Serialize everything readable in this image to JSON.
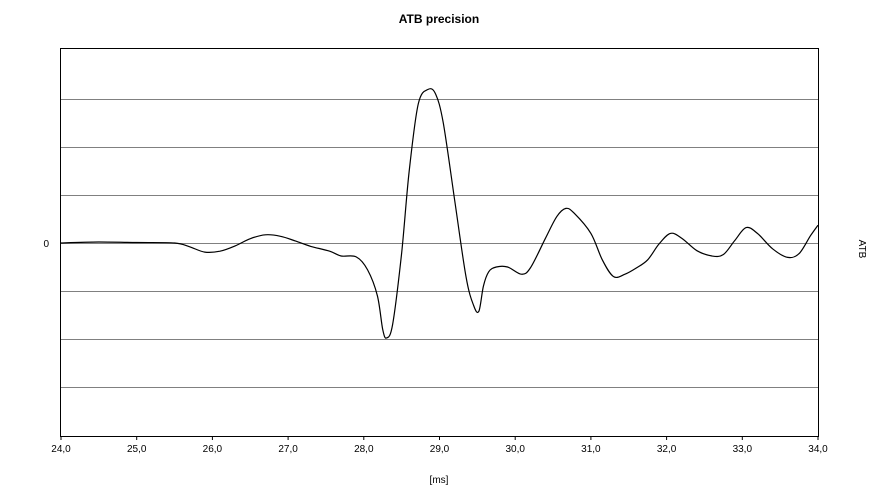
{
  "chart_data": {
    "type": "line",
    "title": "ATB precision",
    "xlabel": "[ms]",
    "ylabel_right": "ATB",
    "xlim": [
      24.0,
      34.0
    ],
    "ylim": [
      -4,
      4
    ],
    "x_ticks": [
      "24,0",
      "25,0",
      "26,0",
      "27,0",
      "28,0",
      "29,0",
      "30,0",
      "31,0",
      "32,0",
      "33,0",
      "34,0"
    ],
    "y_tick_labels": [
      {
        "value": 0,
        "label": "0"
      }
    ],
    "grid": {
      "horizontal": true,
      "vertical": false,
      "y_lines": [
        -3,
        -2,
        -1,
        0,
        1,
        2,
        3
      ]
    },
    "series": [
      {
        "name": "",
        "color": "#000000",
        "points": [
          [
            24.0,
            0.0
          ],
          [
            24.5,
            0.02
          ],
          [
            25.0,
            0.01
          ],
          [
            25.5,
            0.0
          ],
          [
            25.7,
            -0.08
          ],
          [
            25.9,
            -0.19
          ],
          [
            26.1,
            -0.17
          ],
          [
            26.3,
            -0.06
          ],
          [
            26.5,
            0.09
          ],
          [
            26.7,
            0.17
          ],
          [
            26.9,
            0.14
          ],
          [
            27.1,
            0.04
          ],
          [
            27.3,
            -0.07
          ],
          [
            27.55,
            -0.17
          ],
          [
            27.7,
            -0.27
          ],
          [
            27.9,
            -0.29
          ],
          [
            28.05,
            -0.56
          ],
          [
            28.18,
            -1.1
          ],
          [
            28.25,
            -1.8
          ],
          [
            28.3,
            -1.98
          ],
          [
            28.38,
            -1.7
          ],
          [
            28.5,
            -0.2
          ],
          [
            28.6,
            1.5
          ],
          [
            28.72,
            2.9
          ],
          [
            28.85,
            3.2
          ],
          [
            28.95,
            3.1
          ],
          [
            29.05,
            2.5
          ],
          [
            29.2,
            0.9
          ],
          [
            29.35,
            -0.7
          ],
          [
            29.45,
            -1.3
          ],
          [
            29.52,
            -1.42
          ],
          [
            29.58,
            -0.9
          ],
          [
            29.65,
            -0.6
          ],
          [
            29.75,
            -0.5
          ],
          [
            29.9,
            -0.5
          ],
          [
            30.08,
            -0.65
          ],
          [
            30.2,
            -0.52
          ],
          [
            30.4,
            0.1
          ],
          [
            30.55,
            0.55
          ],
          [
            30.67,
            0.72
          ],
          [
            30.78,
            0.62
          ],
          [
            31.0,
            0.2
          ],
          [
            31.15,
            -0.35
          ],
          [
            31.3,
            -0.7
          ],
          [
            31.45,
            -0.65
          ],
          [
            31.6,
            -0.52
          ],
          [
            31.75,
            -0.35
          ],
          [
            31.9,
            -0.02
          ],
          [
            32.05,
            0.2
          ],
          [
            32.2,
            0.1
          ],
          [
            32.4,
            -0.16
          ],
          [
            32.6,
            -0.27
          ],
          [
            32.75,
            -0.24
          ],
          [
            32.9,
            0.05
          ],
          [
            33.05,
            0.32
          ],
          [
            33.2,
            0.2
          ],
          [
            33.4,
            -0.12
          ],
          [
            33.6,
            -0.3
          ],
          [
            33.75,
            -0.22
          ],
          [
            33.9,
            0.15
          ],
          [
            34.0,
            0.37
          ]
        ]
      }
    ]
  }
}
